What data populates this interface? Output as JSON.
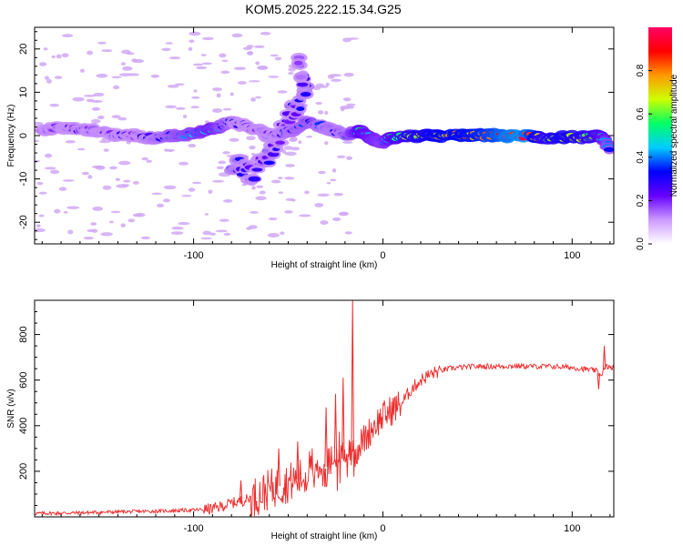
{
  "figure": {
    "title": "KOM5.2025.222.15.34.G25"
  },
  "chart_data": [
    {
      "type": "heatmap",
      "name": "spectrogram",
      "title": "KOM5.2025.222.15.34.G25",
      "xlabel": "Height of straight line (km)",
      "ylabel": "Frequency (Hz)",
      "xlim": [
        -184,
        122
      ],
      "ylim": [
        -25,
        25
      ],
      "xticks": [
        -100,
        0,
        100
      ],
      "yticks": [
        -20,
        -10,
        0,
        10,
        20
      ],
      "colorbar": {
        "label": "Normalized spectral amplitude",
        "range": [
          0,
          1
        ],
        "ticks": [
          0.0,
          0.2,
          0.4,
          0.6,
          0.8
        ],
        "colors": [
          "#ffffff",
          "#cc99ff",
          "#6600ff",
          "#0000ff",
          "#00ccff",
          "#00ff66",
          "#ccff00",
          "#ff9900",
          "#ff0000",
          "#ff0066"
        ]
      },
      "ridge": [
        {
          "x": -180,
          "y": 1,
          "a": 0.18
        },
        {
          "x": -170,
          "y": 2,
          "a": 0.2
        },
        {
          "x": -160,
          "y": 1.5,
          "a": 0.22
        },
        {
          "x": -150,
          "y": 1,
          "a": 0.2
        },
        {
          "x": -140,
          "y": 0,
          "a": 0.25
        },
        {
          "x": -130,
          "y": 0,
          "a": 0.25
        },
        {
          "x": -120,
          "y": -0.5,
          "a": 0.3
        },
        {
          "x": -110,
          "y": 0,
          "a": 0.35
        },
        {
          "x": -100,
          "y": 0.5,
          "a": 0.4
        },
        {
          "x": -90,
          "y": 1.5,
          "a": 0.45
        },
        {
          "x": -80,
          "y": 3,
          "a": 0.3
        },
        {
          "x": -70,
          "y": 2,
          "a": 0.2
        },
        {
          "x": -60,
          "y": 0,
          "a": 0.25
        },
        {
          "x": -50,
          "y": 1,
          "a": 0.3
        },
        {
          "x": -40,
          "y": 3,
          "a": 0.35
        },
        {
          "x": -30,
          "y": 2,
          "a": 0.3
        },
        {
          "x": -20,
          "y": 0,
          "a": 0.3
        },
        {
          "x": -12,
          "y": 1,
          "a": 0.5
        },
        {
          "x": -5,
          "y": -1,
          "a": 0.45
        },
        {
          "x": 0,
          "y": -1.5,
          "a": 0.4
        },
        {
          "x": 5,
          "y": -0.5,
          "a": 0.5
        },
        {
          "x": 15,
          "y": 0,
          "a": 0.65
        },
        {
          "x": 25,
          "y": 0,
          "a": 0.7
        },
        {
          "x": 35,
          "y": 0,
          "a": 0.75
        },
        {
          "x": 45,
          "y": 0,
          "a": 0.75
        },
        {
          "x": 55,
          "y": 0,
          "a": 0.8
        },
        {
          "x": 65,
          "y": 0,
          "a": 0.88
        },
        {
          "x": 75,
          "y": 0,
          "a": 0.92
        },
        {
          "x": 85,
          "y": -0.5,
          "a": 0.6
        },
        {
          "x": 95,
          "y": -0.5,
          "a": 0.7
        },
        {
          "x": 105,
          "y": -0.5,
          "a": 0.65
        },
        {
          "x": 115,
          "y": 0,
          "a": 0.55
        },
        {
          "x": 120,
          "y": -3,
          "a": 0.35
        }
      ],
      "side_branch": [
        {
          "x": -80,
          "y": -6,
          "a": 0.3
        },
        {
          "x": -70,
          "y": -9,
          "a": 0.25
        },
        {
          "x": -60,
          "y": -5,
          "a": 0.28
        },
        {
          "x": -50,
          "y": 4,
          "a": 0.25
        },
        {
          "x": -40,
          "y": 10,
          "a": 0.3
        },
        {
          "x": -45,
          "y": 17,
          "a": 0.15
        }
      ]
    },
    {
      "type": "line",
      "name": "snr",
      "xlabel": "Height of straight line (km)",
      "ylabel": "SNR (v/v)",
      "xlim": [
        -184,
        122
      ],
      "ylim": [
        0,
        950
      ],
      "xticks": [
        -100,
        0,
        100
      ],
      "yticks": [
        200,
        400,
        600,
        800
      ],
      "color": "#ee2a2a",
      "x": [
        -184,
        -160,
        -140,
        -120,
        -100,
        -90,
        -80,
        -70,
        -60,
        -50,
        -40,
        -30,
        -25,
        -20,
        -17,
        -15,
        -12,
        -8,
        -5,
        0,
        5,
        10,
        15,
        20,
        25,
        30,
        35,
        40,
        50,
        60,
        70,
        80,
        90,
        100,
        105,
        110,
        113,
        115,
        118,
        122
      ],
      "y": [
        15,
        18,
        22,
        25,
        30,
        35,
        60,
        80,
        120,
        150,
        180,
        220,
        240,
        260,
        300,
        280,
        320,
        360,
        400,
        440,
        470,
        500,
        560,
        600,
        625,
        640,
        650,
        655,
        660,
        660,
        662,
        660,
        660,
        655,
        650,
        645,
        640,
        620,
        660,
        650
      ],
      "spikes": [
        {
          "x": -16,
          "y": 950
        },
        {
          "x": -21,
          "y": 610
        },
        {
          "x": -25,
          "y": 540
        },
        {
          "x": -30,
          "y": 480
        },
        {
          "x": -45,
          "y": 330
        },
        {
          "x": -55,
          "y": 300
        },
        {
          "x": -75,
          "y": 160
        },
        {
          "x": 114,
          "y": 560
        },
        {
          "x": 117,
          "y": 750
        }
      ]
    }
  ]
}
